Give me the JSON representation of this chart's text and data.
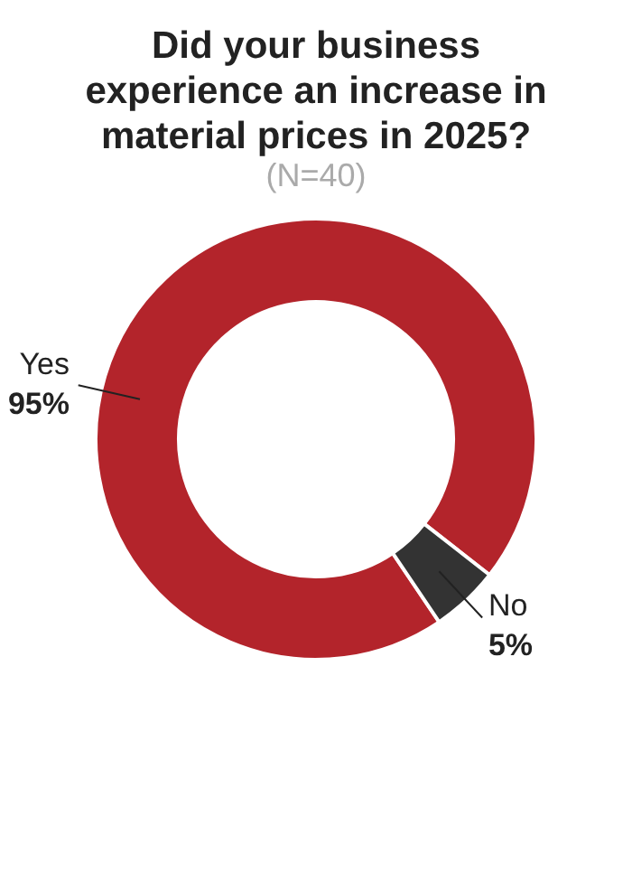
{
  "chart_data": {
    "type": "donut",
    "title": "Did your business experience an increase in material prices in 2025?",
    "subtitle": "(N=40)",
    "categories": [
      "Yes",
      "No"
    ],
    "values": [
      95,
      5
    ],
    "colors": [
      "#b3242b",
      "#333333"
    ],
    "value_labels": [
      "95%",
      "5%"
    ]
  }
}
